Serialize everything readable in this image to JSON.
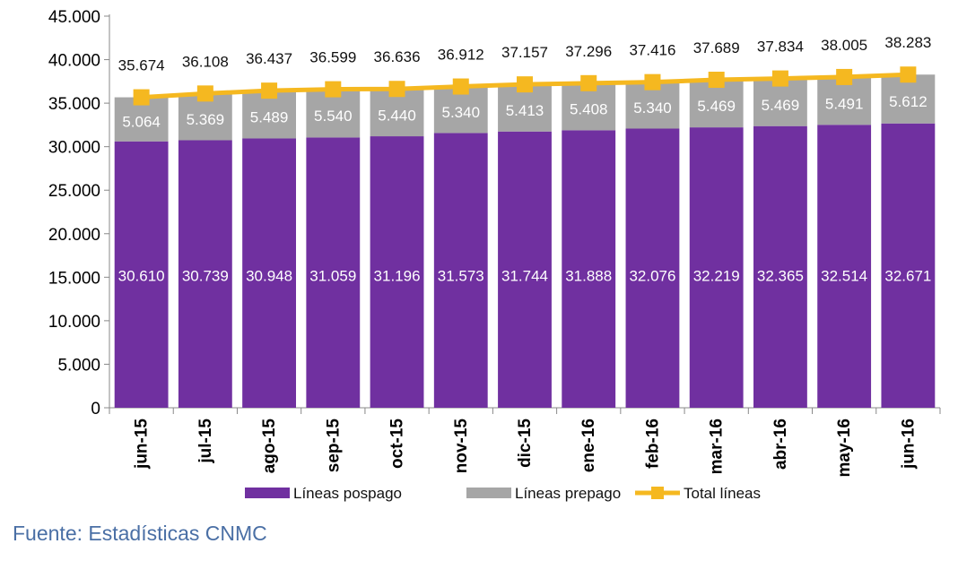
{
  "chart_data": {
    "type": "bar",
    "stacked": true,
    "categories": [
      "jun-15",
      "jul-15",
      "ago-15",
      "sep-15",
      "oct-15",
      "nov-15",
      "dic-15",
      "ene-16",
      "feb-16",
      "mar-16",
      "abr-16",
      "may-16",
      "jun-16"
    ],
    "series": [
      {
        "name": "Líneas pospago",
        "type": "bar",
        "color": "#7030a0",
        "values": [
          30610,
          30739,
          30948,
          31059,
          31196,
          31573,
          31744,
          31888,
          32076,
          32219,
          32365,
          32514,
          32671
        ],
        "labels": [
          "30.610",
          "30.739",
          "30.948",
          "31.059",
          "31.196",
          "31.573",
          "31.744",
          "31.888",
          "32.076",
          "32.219",
          "32.365",
          "32.514",
          "32.671"
        ]
      },
      {
        "name": "Líneas prepago",
        "type": "bar",
        "color": "#a6a6a6",
        "values": [
          5064,
          5369,
          5489,
          5540,
          5440,
          5340,
          5413,
          5408,
          5340,
          5469,
          5469,
          5491,
          5612
        ],
        "labels": [
          "5.064",
          "5.369",
          "5.489",
          "5.540",
          "5.440",
          "5.340",
          "5.413",
          "5.408",
          "5.340",
          "5.469",
          "5.469",
          "5.491",
          "5.612"
        ]
      },
      {
        "name": "Total líneas",
        "type": "line",
        "color": "#f5b820",
        "values": [
          35674,
          36108,
          36437,
          36599,
          36636,
          36912,
          37157,
          37296,
          37416,
          37689,
          37834,
          38005,
          38283
        ],
        "labels": [
          "35.674",
          "36.108",
          "36.437",
          "36.599",
          "36.636",
          "36.912",
          "37.157",
          "37.296",
          "37.416",
          "37.689",
          "37.834",
          "38.005",
          "38.283"
        ]
      }
    ],
    "ylim": [
      0,
      45000
    ],
    "yticks": [
      0,
      5000,
      10000,
      15000,
      20000,
      25000,
      30000,
      35000,
      40000,
      45000
    ],
    "ytick_labels": [
      "0",
      "5.000",
      "10.000",
      "15.000",
      "20.000",
      "25.000",
      "30.000",
      "35.000",
      "40.000",
      "45.000"
    ],
    "legend_position": "bottom",
    "grid": false
  },
  "source": "Fuente: Estadísticas CNMC"
}
